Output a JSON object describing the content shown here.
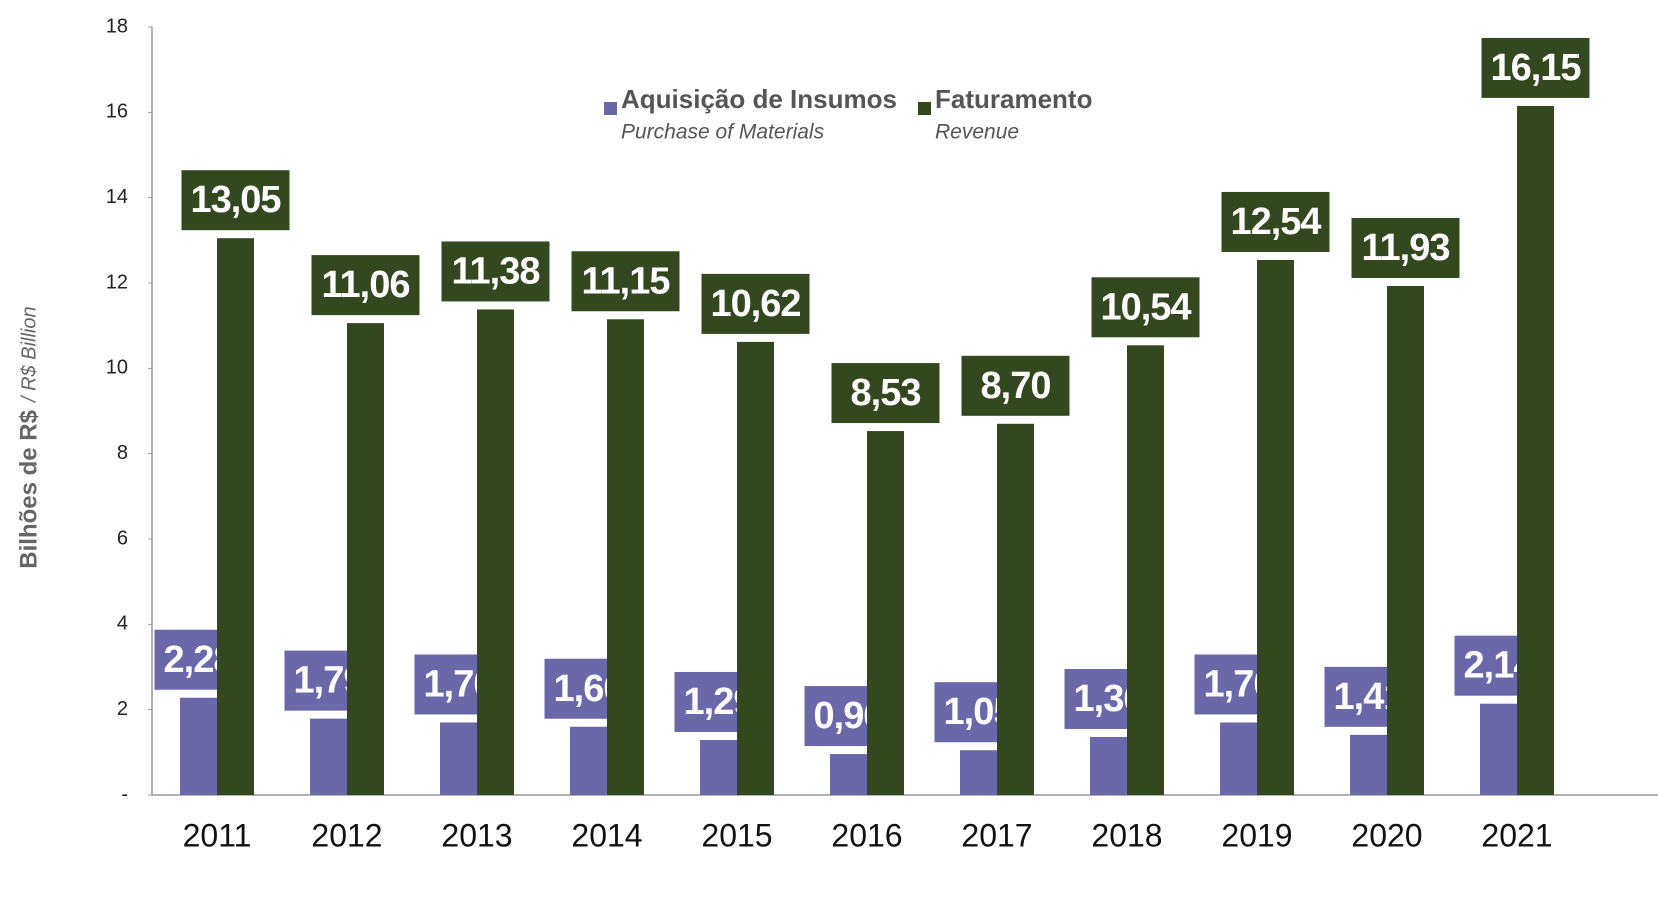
{
  "chart_data": {
    "type": "bar",
    "y_label": "Bilhões de R$",
    "y_label_en": "/ R$ Billion",
    "categories": [
      "2011",
      "2012",
      "2013",
      "2014",
      "2015",
      "2016",
      "2017",
      "2018",
      "2019",
      "2020",
      "2021"
    ],
    "series": [
      {
        "name": "Aquisição de Insumos",
        "name_en": "Purchase of Materials",
        "color": "#6b68aa",
        "values": [
          2.28,
          1.79,
          1.7,
          1.6,
          1.29,
          0.96,
          1.05,
          1.36,
          1.7,
          1.41,
          2.14
        ],
        "value_labels": [
          "2,28",
          "1,79",
          "1,70",
          "1,60",
          "1,29",
          "0,96",
          "1,05",
          "1,36",
          "1,70",
          "1,41",
          "2,14"
        ]
      },
      {
        "name": "Faturamento",
        "name_en": "Revenue",
        "color": "#344820",
        "values": [
          13.05,
          11.06,
          11.38,
          11.15,
          10.62,
          8.53,
          8.7,
          10.54,
          12.54,
          11.93,
          16.15
        ],
        "value_labels": [
          "13,05",
          "11,06",
          "11,38",
          "11,15",
          "10,62",
          "8,53",
          "8,70",
          "10,54",
          "12,54",
          "11,93",
          "16,15"
        ]
      }
    ],
    "ylim": [
      0,
      18
    ],
    "yticks": [
      {
        "value": 0,
        "label": "-"
      },
      2,
      4,
      6,
      8,
      10,
      12,
      14,
      16,
      18
    ],
    "grid": false
  }
}
